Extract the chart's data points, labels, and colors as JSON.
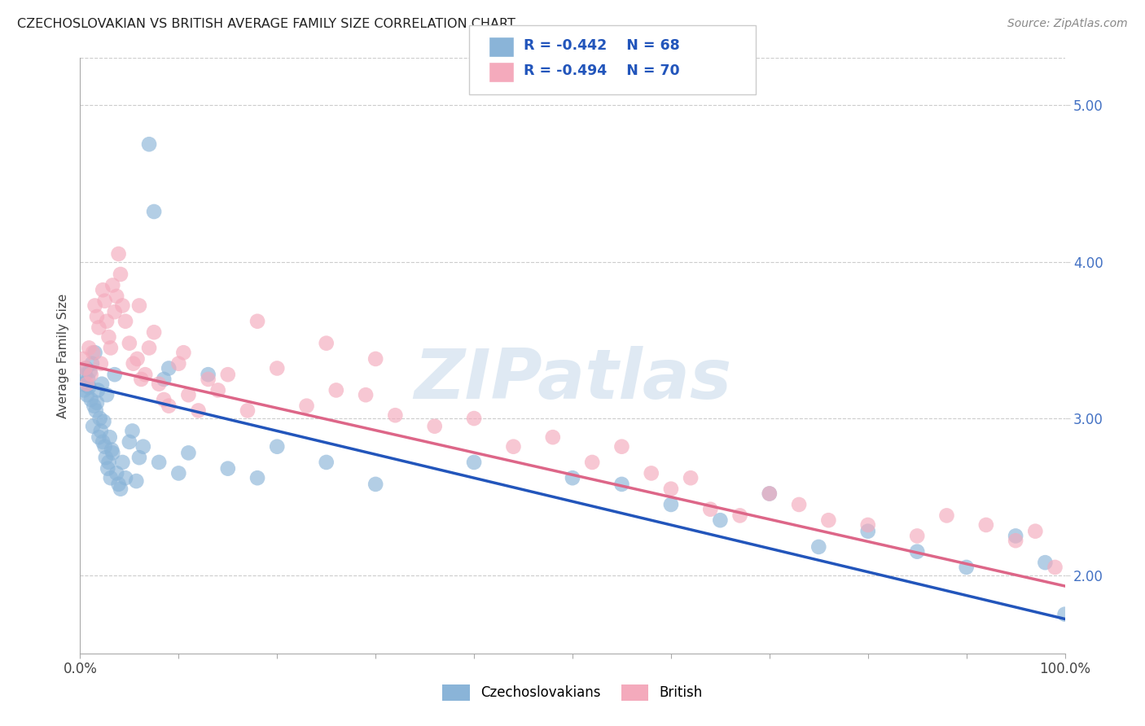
{
  "title": "CZECHOSLOVAKIAN VS BRITISH AVERAGE FAMILY SIZE CORRELATION CHART",
  "source": "Source: ZipAtlas.com",
  "ylabel": "Average Family Size",
  "ylim": [
    1.5,
    5.3
  ],
  "xlim": [
    0.0,
    100.0
  ],
  "yticks": [
    2.0,
    3.0,
    4.0,
    5.0
  ],
  "legend_blue_r": "R = -0.442",
  "legend_blue_n": "N = 68",
  "legend_pink_r": "R = -0.494",
  "legend_pink_n": "N = 70",
  "blue_color": "#8ab4d8",
  "pink_color": "#f4aabc",
  "line_blue": "#2255bb",
  "line_pink": "#dd6688",
  "watermark": "ZIPatlas",
  "blue_x": [
    0.3,
    0.4,
    0.5,
    0.6,
    0.7,
    0.8,
    0.9,
    1.0,
    1.1,
    1.2,
    1.3,
    1.4,
    1.5,
    1.6,
    1.7,
    1.8,
    1.9,
    2.0,
    2.1,
    2.2,
    2.3,
    2.4,
    2.5,
    2.6,
    2.7,
    2.8,
    2.9,
    3.0,
    3.1,
    3.2,
    3.3,
    3.5,
    3.7,
    3.9,
    4.1,
    4.3,
    4.6,
    5.0,
    5.3,
    5.7,
    6.0,
    6.4,
    7.0,
    7.5,
    8.0,
    8.5,
    9.0,
    10.0,
    11.0,
    13.0,
    15.0,
    18.0,
    20.0,
    25.0,
    30.0,
    40.0,
    50.0,
    55.0,
    60.0,
    65.0,
    70.0,
    75.0,
    80.0,
    85.0,
    90.0,
    95.0,
    98.0,
    100.0
  ],
  "blue_y": [
    3.22,
    3.18,
    3.28,
    3.32,
    3.15,
    3.25,
    3.2,
    3.3,
    3.12,
    3.35,
    2.95,
    3.08,
    3.42,
    3.05,
    3.1,
    3.18,
    2.88,
    3.0,
    2.92,
    3.22,
    2.85,
    2.98,
    2.82,
    2.75,
    3.15,
    2.68,
    2.72,
    2.88,
    2.62,
    2.8,
    2.78,
    3.28,
    2.65,
    2.58,
    2.55,
    2.72,
    2.62,
    2.85,
    2.92,
    2.6,
    2.75,
    2.82,
    4.75,
    4.32,
    2.72,
    3.25,
    3.32,
    2.65,
    2.78,
    3.28,
    2.68,
    2.62,
    2.82,
    2.72,
    2.58,
    2.72,
    2.62,
    2.58,
    2.45,
    2.35,
    2.52,
    2.18,
    2.28,
    2.15,
    2.05,
    2.25,
    2.08,
    1.75
  ],
  "pink_x": [
    0.3,
    0.5,
    0.7,
    0.9,
    1.1,
    1.3,
    1.5,
    1.7,
    1.9,
    2.1,
    2.3,
    2.5,
    2.7,
    2.9,
    3.1,
    3.3,
    3.5,
    3.7,
    3.9,
    4.1,
    4.3,
    4.6,
    5.0,
    5.4,
    5.8,
    6.2,
    6.6,
    7.0,
    7.5,
    8.0,
    8.5,
    9.0,
    10.0,
    11.0,
    12.0,
    13.0,
    14.0,
    15.0,
    17.0,
    20.0,
    23.0,
    26.0,
    29.0,
    32.0,
    36.0,
    40.0,
    44.0,
    48.0,
    52.0,
    55.0,
    58.0,
    60.0,
    62.0,
    64.0,
    67.0,
    70.0,
    73.0,
    76.0,
    80.0,
    85.0,
    88.0,
    92.0,
    95.0,
    97.0,
    99.0,
    30.0,
    25.0,
    18.0,
    10.5,
    6.0
  ],
  "pink_y": [
    3.38,
    3.32,
    3.22,
    3.45,
    3.28,
    3.42,
    3.72,
    3.65,
    3.58,
    3.35,
    3.82,
    3.75,
    3.62,
    3.52,
    3.45,
    3.85,
    3.68,
    3.78,
    4.05,
    3.92,
    3.72,
    3.62,
    3.48,
    3.35,
    3.38,
    3.25,
    3.28,
    3.45,
    3.55,
    3.22,
    3.12,
    3.08,
    3.35,
    3.15,
    3.05,
    3.25,
    3.18,
    3.28,
    3.05,
    3.32,
    3.08,
    3.18,
    3.15,
    3.02,
    2.95,
    3.0,
    2.82,
    2.88,
    2.72,
    2.82,
    2.65,
    2.55,
    2.62,
    2.42,
    2.38,
    2.52,
    2.45,
    2.35,
    2.32,
    2.25,
    2.38,
    2.32,
    2.22,
    2.28,
    2.05,
    3.38,
    3.48,
    3.62,
    3.42,
    3.72
  ]
}
